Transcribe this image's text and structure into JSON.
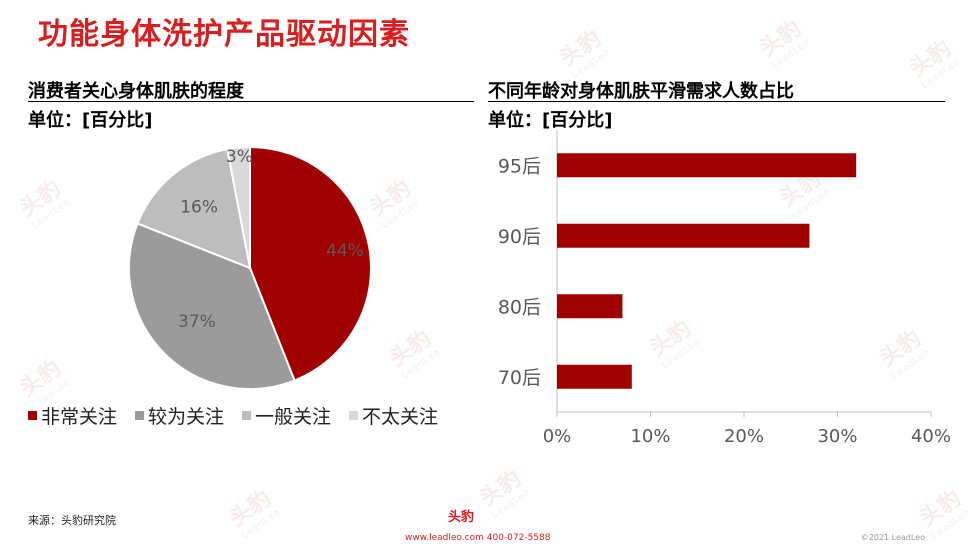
{
  "header": {
    "title": "功能身体洗护产品驱动因素"
  },
  "left_panel": {
    "title": "消费者关心身体肌肤的程度",
    "unit": "单位：[百分比]"
  },
  "right_panel": {
    "title": "不同年龄对身体肌肤平滑需求人数占比",
    "unit": "单位：[百分比]"
  },
  "chart_data": [
    {
      "type": "pie",
      "title": "消费者关心身体肌肤的程度",
      "unit": "单位：[百分比]",
      "slices": [
        {
          "label": "非常关注",
          "value": 44,
          "display": "44%",
          "color": "#a00000"
        },
        {
          "label": "较为关注",
          "value": 37,
          "display": "37%",
          "color": "#9b9b9b"
        },
        {
          "label": "一般关注",
          "value": 16,
          "display": "16%",
          "color": "#bdbdbd"
        },
        {
          "label": "不太关注",
          "value": 3,
          "display": "3%",
          "color": "#d9d9d9"
        }
      ],
      "legend_placement": "bottom"
    },
    {
      "type": "bar",
      "orientation": "horizontal",
      "title": "不同年龄对身体肌肤平滑需求人数占比",
      "unit": "单位：[百分比]",
      "categories": [
        "95后",
        "90后",
        "80后",
        "70后"
      ],
      "values": [
        32,
        27,
        7,
        8
      ],
      "xlim": [
        0,
        40
      ],
      "xticks": [
        "0%",
        "10%",
        "20%",
        "30%",
        "40%"
      ],
      "bar_color": "#a00000",
      "grid": false
    }
  ],
  "footer": {
    "source": "来源：头豹研究院",
    "logo_text": "头豹",
    "contact": "www.leadleo.com  400-072-5588",
    "copyright": "©2021 LeadLeo"
  }
}
